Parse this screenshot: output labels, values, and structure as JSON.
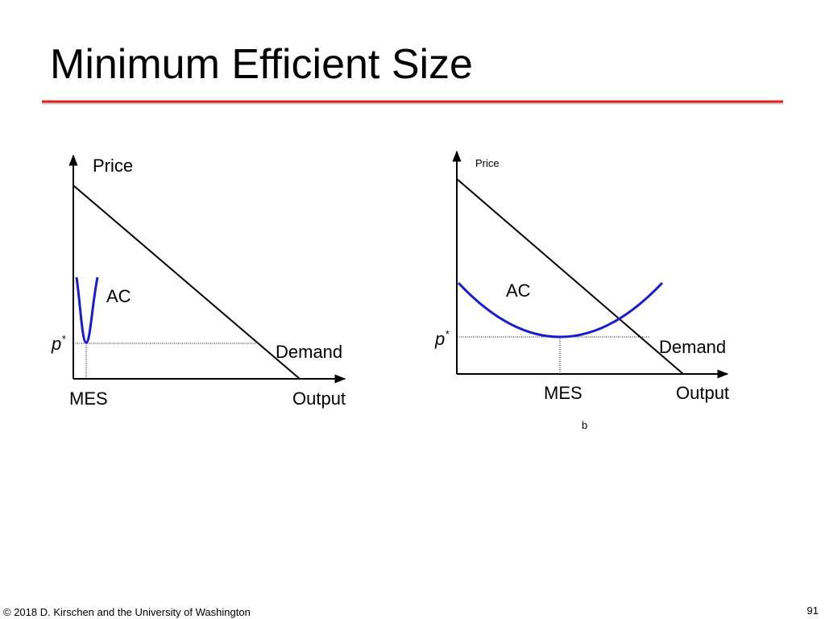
{
  "header": {
    "title": "Minimum Efficient Size"
  },
  "diagrams": [
    {
      "y_axis_label": "Price",
      "x_axis_label": "Output",
      "curve_label": "AC",
      "demand_label": "Demand",
      "price_label": {
        "base": "p",
        "sup": "*"
      },
      "quantity_label": "MES"
    },
    {
      "y_axis_label": "Price",
      "x_axis_label": "Output",
      "curve_label": "AC",
      "demand_label": "Demand",
      "price_label": {
        "base": "p",
        "sup": "*"
      },
      "quantity_label": "MES",
      "caption": "b"
    }
  ],
  "footer": {
    "copyright": "© 2018 D. Kirschen and the University of Washington",
    "page_number": "91"
  }
}
